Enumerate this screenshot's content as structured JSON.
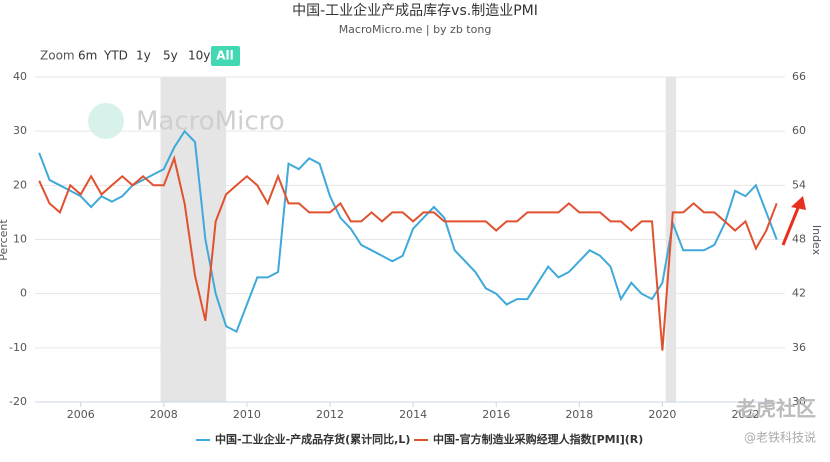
{
  "chart_data": {
    "type": "line",
    "title": "中国-工业企业产成品库存vs.制造业PMI",
    "subtitle": "MacroMicro.me | by zb tong",
    "watermarks": [
      "MacroMicro",
      "老虎社区",
      "@老铁科技说"
    ],
    "range_selector": {
      "label": "Zoom",
      "buttons": [
        "6m",
        "YTD",
        "1y",
        "5y",
        "10y",
        "All"
      ],
      "selected": 5
    },
    "ylabel": "Percent",
    "y2label": "Index",
    "xlim": [
      2004.9,
      2022.95
    ],
    "xticks": [
      2006,
      2008,
      2010,
      2012,
      2014,
      2016,
      2018,
      2020,
      2022
    ],
    "ylim": [
      -20,
      40
    ],
    "yticks": [
      -20,
      -10,
      0,
      10,
      20,
      30,
      40
    ],
    "y2lim": [
      30,
      66
    ],
    "y2ticks": [
      30,
      36,
      42,
      48,
      54,
      60,
      66
    ],
    "grid": true,
    "bands": [
      [
        2007.92,
        2009.5
      ],
      [
        2020.08,
        2020.33
      ]
    ],
    "x": [
      2005.0,
      2005.25,
      2005.5,
      2005.75,
      2006.0,
      2006.25,
      2006.5,
      2006.75,
      2007.0,
      2007.25,
      2007.5,
      2007.75,
      2008.0,
      2008.25,
      2008.5,
      2008.75,
      2009.0,
      2009.25,
      2009.5,
      2009.75,
      2010.0,
      2010.25,
      2010.5,
      2010.75,
      2011.0,
      2011.25,
      2011.5,
      2011.75,
      2012.0,
      2012.25,
      2012.5,
      2012.75,
      2013.0,
      2013.25,
      2013.5,
      2013.75,
      2014.0,
      2014.25,
      2014.5,
      2014.75,
      2015.0,
      2015.25,
      2015.5,
      2015.75,
      2016.0,
      2016.25,
      2016.5,
      2016.75,
      2017.0,
      2017.25,
      2017.5,
      2017.75,
      2018.0,
      2018.25,
      2018.5,
      2018.75,
      2019.0,
      2019.25,
      2019.5,
      2019.75,
      2020.0,
      2020.25,
      2020.5,
      2020.75,
      2021.0,
      2021.25,
      2021.5,
      2021.75,
      2022.0,
      2022.25,
      2022.5,
      2022.75
    ],
    "series": [
      {
        "name": "中国-工业企业-产成品存货(累计同比,L)",
        "color": "#3fa9d9",
        "axis": "y",
        "values": [
          26,
          21,
          20,
          19,
          18,
          16,
          18,
          17,
          18,
          20,
          21,
          22,
          23,
          27,
          30,
          28,
          10,
          0,
          -6,
          -7,
          -2,
          3,
          3,
          4,
          24,
          23,
          25,
          24,
          18,
          14,
          12,
          9,
          8,
          7,
          6,
          7,
          12,
          14,
          16,
          14,
          8,
          6,
          4,
          1,
          0,
          -2,
          -1,
          -1,
          2,
          5,
          3,
          4,
          6,
          8,
          7,
          5,
          -1,
          2,
          0,
          -1,
          2,
          13,
          8,
          8,
          8,
          9,
          13,
          19,
          18,
          20,
          15,
          10
        ]
      },
      {
        "name": "中国-官方制造业采购经理人指数[PMI](R)",
        "color": "#e0512f",
        "axis": "y2",
        "values": [
          54.5,
          52,
          51,
          54,
          53,
          55,
          53,
          54,
          55,
          54,
          55,
          54,
          54,
          57,
          52,
          44,
          39,
          50,
          53,
          54,
          55,
          54,
          52,
          55,
          52,
          52,
          51,
          51,
          51,
          52,
          50,
          50,
          51,
          50,
          51,
          51,
          50,
          51,
          51,
          50,
          50,
          50,
          50,
          50,
          49,
          50,
          50,
          51,
          51,
          51,
          51,
          52,
          51,
          51,
          51,
          50,
          50,
          49,
          50,
          50,
          35.7,
          51,
          51,
          52,
          51,
          51,
          50,
          49,
          50,
          47,
          49,
          52
        ]
      }
    ]
  }
}
